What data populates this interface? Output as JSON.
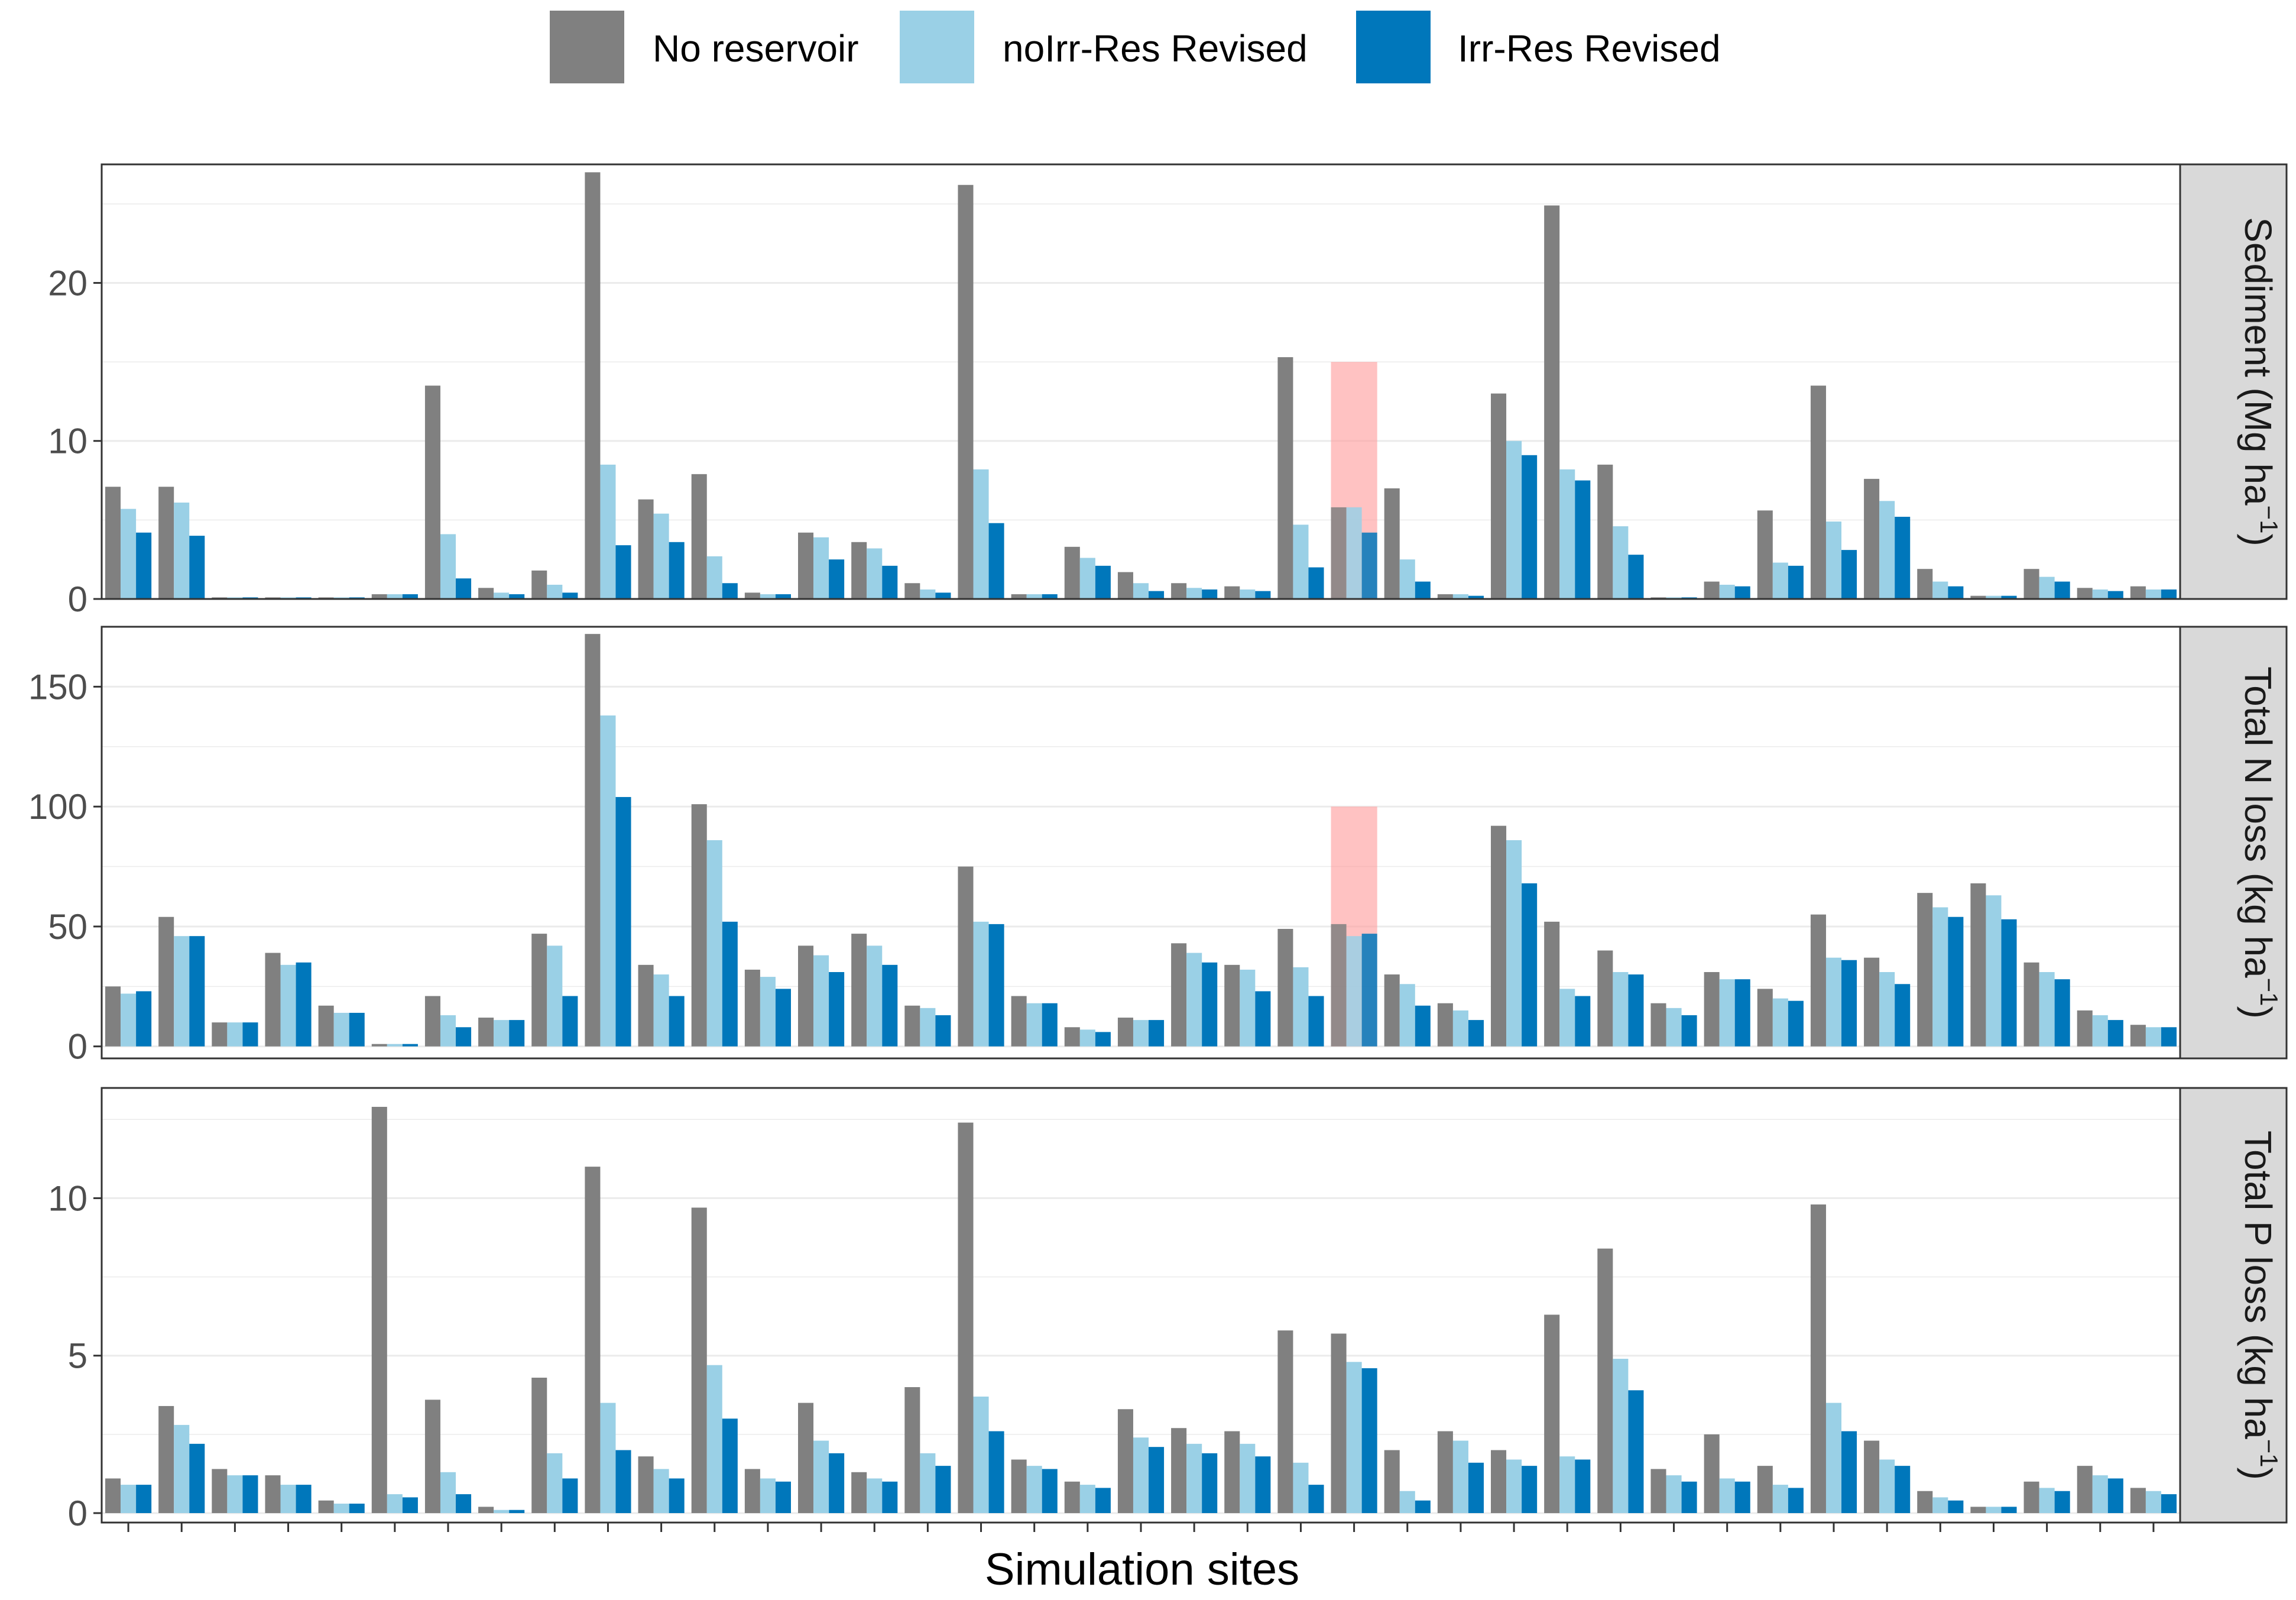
{
  "chart_data": {
    "type": "bar",
    "xlabel": "Simulation sites",
    "legend_position": "top",
    "colors": {
      "No reservoir": "#808080",
      "noIrr-Res Revised": "#9ad0e6",
      "Irr-Res Revised": "#0077bb",
      "highlight": "#ff9a9a"
    },
    "series_names": [
      "No reservoir",
      "noIrr-Res Revised",
      "Irr-Res Revised"
    ],
    "site_count": 39,
    "panels": [
      {
        "strip": "Sediment (Mg ha",
        "strip_sup": "−1",
        "strip_close": ")",
        "ylim": [
          0,
          27.5
        ],
        "ticks": [
          0,
          10,
          20
        ],
        "tick_labels": [
          "0",
          "10",
          "20"
        ],
        "highlight_site": 24,
        "highlight_top": 15,
        "series": [
          {
            "name": "No reservoir",
            "values": [
              7.1,
              7.1,
              0.1,
              0.1,
              0.1,
              0.3,
              13.5,
              0.7,
              1.8,
              27,
              6.3,
              7.9,
              0.4,
              4.2,
              3.6,
              1.0,
              26.2,
              0.3,
              3.3,
              1.7,
              1.0,
              0.8,
              15.3,
              5.8,
              7.0,
              0.3,
              13.0,
              24.9,
              8.5,
              0.1,
              1.1,
              5.6,
              13.5,
              7.6,
              1.9,
              0.2,
              1.9,
              0.7,
              0.8
            ]
          },
          {
            "name": "noIrr-Res Revised",
            "values": [
              5.7,
              6.1,
              0.1,
              0.1,
              0.1,
              0.3,
              4.1,
              0.4,
              0.9,
              8.5,
              5.4,
              2.7,
              0.3,
              3.9,
              3.2,
              0.6,
              8.2,
              0.3,
              2.6,
              1.0,
              0.7,
              0.6,
              4.7,
              5.8,
              2.5,
              0.3,
              10.0,
              8.2,
              4.6,
              0.1,
              0.9,
              2.3,
              4.9,
              6.2,
              1.1,
              0.2,
              1.4,
              0.6,
              0.6
            ]
          },
          {
            "name": "Irr-Res Revised",
            "values": [
              4.2,
              4.0,
              0.1,
              0.1,
              0.1,
              0.3,
              1.3,
              0.3,
              0.4,
              3.4,
              3.6,
              1.0,
              0.3,
              2.5,
              2.1,
              0.4,
              4.8,
              0.3,
              2.1,
              0.5,
              0.6,
              0.5,
              2.0,
              4.2,
              1.1,
              0.2,
              9.1,
              7.5,
              2.8,
              0.1,
              0.8,
              2.1,
              3.1,
              5.2,
              0.8,
              0.2,
              1.1,
              0.5,
              0.6
            ]
          }
        ]
      },
      {
        "strip": "Total N loss (kg ha",
        "strip_sup": "−1",
        "strip_close": ")",
        "ylim": [
          -5,
          175
        ],
        "ticks": [
          0,
          50,
          100,
          150
        ],
        "tick_labels": [
          "0",
          "50",
          "100",
          "150"
        ],
        "highlight_site": 24,
        "highlight_top": 100,
        "series": [
          {
            "name": "No reservoir",
            "values": [
              25,
              54,
              10,
              39,
              17,
              1,
              21,
              12,
              47,
              172,
              34,
              101,
              32,
              42,
              47,
              17,
              75,
              21,
              8,
              12,
              43,
              34,
              49,
              51,
              30,
              18,
              92,
              52,
              40,
              18,
              31,
              24,
              55,
              37,
              64,
              68,
              35,
              15,
              9
            ]
          },
          {
            "name": "noIrr-Res Revised",
            "values": [
              22,
              46,
              10,
              34,
              14,
              1,
              13,
              11,
              42,
              138,
              30,
              86,
              29,
              38,
              42,
              16,
              52,
              18,
              7,
              11,
              39,
              32,
              33,
              46,
              26,
              15,
              86,
              24,
              31,
              16,
              28,
              20,
              37,
              31,
              58,
              63,
              31,
              13,
              8
            ]
          },
          {
            "name": "Irr-Res Revised",
            "values": [
              23,
              46,
              10,
              35,
              14,
              1,
              8,
              11,
              21,
              104,
              21,
              52,
              24,
              31,
              34,
              13,
              51,
              18,
              6,
              11,
              35,
              23,
              21,
              47,
              17,
              11,
              68,
              21,
              30,
              13,
              28,
              19,
              36,
              26,
              54,
              53,
              28,
              11,
              8
            ]
          }
        ]
      },
      {
        "strip": "Total P loss (kg ha",
        "strip_sup": "−1",
        "strip_close": ")",
        "ylim": [
          -0.3,
          13.5
        ],
        "ticks": [
          0,
          5,
          10
        ],
        "tick_labels": [
          "0",
          "5",
          "10"
        ],
        "series": [
          {
            "name": "No reservoir",
            "values": [
              1.1,
              3.4,
              1.4,
              1.2,
              0.4,
              12.9,
              3.6,
              0.2,
              4.3,
              11.0,
              1.8,
              9.7,
              1.4,
              3.5,
              1.3,
              4.0,
              12.4,
              1.7,
              1.0,
              3.3,
              2.7,
              2.6,
              5.8,
              5.7,
              2.0,
              2.6,
              2.0,
              6.3,
              8.4,
              1.4,
              2.5,
              1.5,
              9.8,
              2.3,
              0.7,
              0.2,
              1.0,
              1.5,
              0.8
            ]
          },
          {
            "name": "noIrr-Res Revised",
            "values": [
              0.9,
              2.8,
              1.2,
              0.9,
              0.3,
              0.6,
              1.3,
              0.1,
              1.9,
              3.5,
              1.4,
              4.7,
              1.1,
              2.3,
              1.1,
              1.9,
              3.7,
              1.5,
              0.9,
              2.4,
              2.2,
              2.2,
              1.6,
              4.8,
              0.7,
              2.3,
              1.7,
              1.8,
              4.9,
              1.2,
              1.1,
              0.9,
              3.5,
              1.7,
              0.5,
              0.2,
              0.8,
              1.2,
              0.7
            ]
          },
          {
            "name": "Irr-Res Revised",
            "values": [
              0.9,
              2.2,
              1.2,
              0.9,
              0.3,
              0.5,
              0.6,
              0.1,
              1.1,
              2.0,
              1.1,
              3.0,
              1.0,
              1.9,
              1.0,
              1.5,
              2.6,
              1.4,
              0.8,
              2.1,
              1.9,
              1.8,
              0.9,
              4.6,
              0.4,
              1.6,
              1.5,
              1.7,
              3.9,
              1.0,
              1.0,
              0.8,
              2.6,
              1.5,
              0.4,
              0.2,
              0.7,
              1.1,
              0.6
            ]
          }
        ]
      }
    ]
  }
}
